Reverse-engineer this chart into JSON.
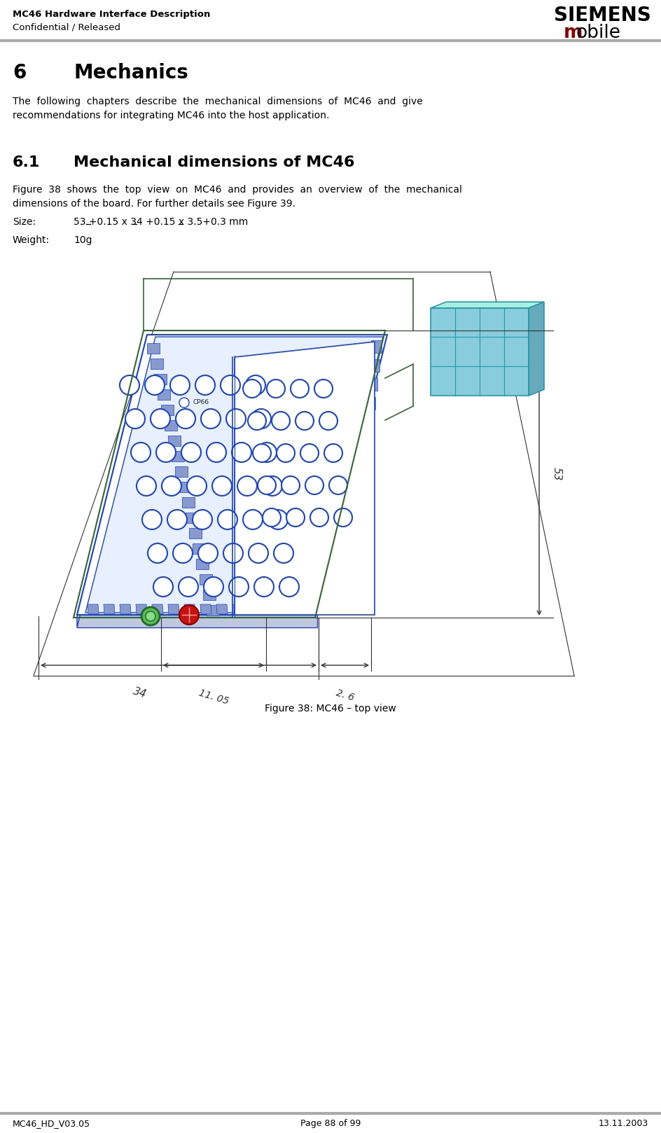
{
  "header_left_line1": "MC46 Hardware Interface Description",
  "header_left_line2": "Confidential / Released",
  "header_siemens": "SIEMENS",
  "header_mobile_m": "m",
  "header_mobile_rest": "obile",
  "siemens_color": "#000000",
  "mobile_m_color": "#8B0000",
  "mobile_rest_color": "#000000",
  "footer_left": "MC46_HD_V03.05",
  "footer_center": "Page 88 of 99",
  "footer_right": "13.11.2003",
  "section_number": "6",
  "section_title": "Mechanics",
  "section_body_line1": "The  following  chapters  describe  the  mechanical  dimensions  of  MC46  and  give",
  "section_body_line2": "recommendations for integrating MC46 into the host application.",
  "subsection_number": "6.1",
  "subsection_title": "Mechanical dimensions of MC46",
  "subsection_body_line1": "Figure  38  shows  the  top  view  on  MC46  and  provides  an  overview  of  the  mechanical",
  "subsection_body_line2": "dimensions of the board. For further details see Figure 39.",
  "size_label": "Size:",
  "size_value": "53 +0.15 x 34 +0.15 x 3.5+0.3 mm",
  "weight_label": "Weight:",
  "weight_value": "10g",
  "figure_caption": "Figure 38: MC46 – top view",
  "bg_color": "#ffffff",
  "text_color": "#000000",
  "header_line_color": "#aaaaaa",
  "footer_line_color": "#aaaaaa",
  "board_blue": "#1a44cc",
  "board_outline_green": "#336633",
  "connector_cyan": "#66ccdd",
  "dim_color": "#333333",
  "green_circle": "#44aa44",
  "red_component": "#cc1111"
}
